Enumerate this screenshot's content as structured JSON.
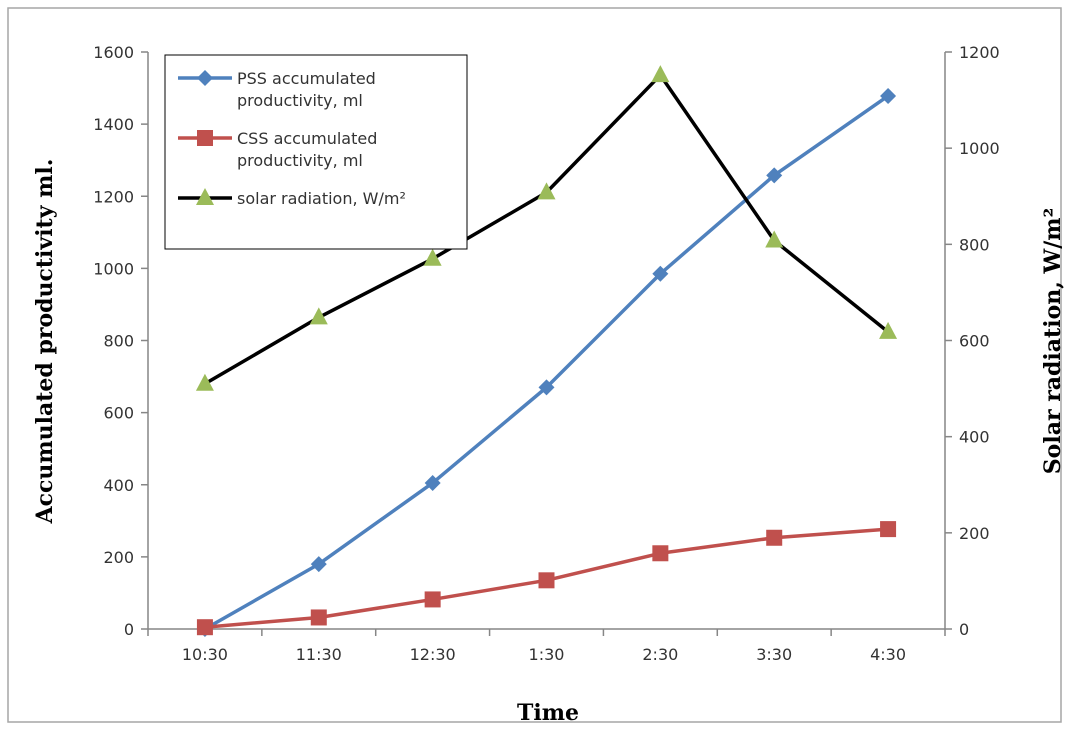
{
  "chart_data": {
    "type": "line",
    "title": "",
    "categories": [
      "10:30",
      "11:30",
      "12:30",
      "1:30",
      "2:30",
      "3:30",
      "4:30"
    ],
    "xlabel": "Time",
    "ylabel": "Accumulated productivity ml.",
    "y2label": "Solar radiation, W/m²",
    "ylim": [
      0,
      1600
    ],
    "y_ticks": [
      0,
      200,
      400,
      600,
      800,
      1000,
      1200,
      1400,
      1600
    ],
    "y2lim": [
      0,
      1200
    ],
    "y2_ticks": [
      0,
      200,
      400,
      600,
      800,
      1000,
      1200
    ],
    "grid": false,
    "legend_position": "top-left",
    "series": [
      {
        "name": "PSS accumulated productivity, ml",
        "legend_lines": [
          "PSS accumulated",
          "productivity, ml"
        ],
        "axis": "left",
        "marker": "diamond",
        "color": "#4f81bd",
        "values": [
          0,
          180,
          405,
          670,
          985,
          1258,
          1478
        ]
      },
      {
        "name": "CSS accumulated productivity, ml",
        "legend_lines": [
          "CSS accumulated",
          "productivity, ml"
        ],
        "axis": "left",
        "marker": "square",
        "color": "#c0504d",
        "values": [
          5,
          32,
          82,
          135,
          210,
          253,
          277
        ]
      },
      {
        "name": "solar radiation, W/m²",
        "legend_lines": [
          "solar radiation, W/m²"
        ],
        "axis": "right",
        "marker": "triangle",
        "color": "#000000",
        "marker_color": "#9bbb59",
        "values": [
          510,
          648,
          770,
          908,
          1152,
          808,
          618
        ]
      }
    ]
  }
}
